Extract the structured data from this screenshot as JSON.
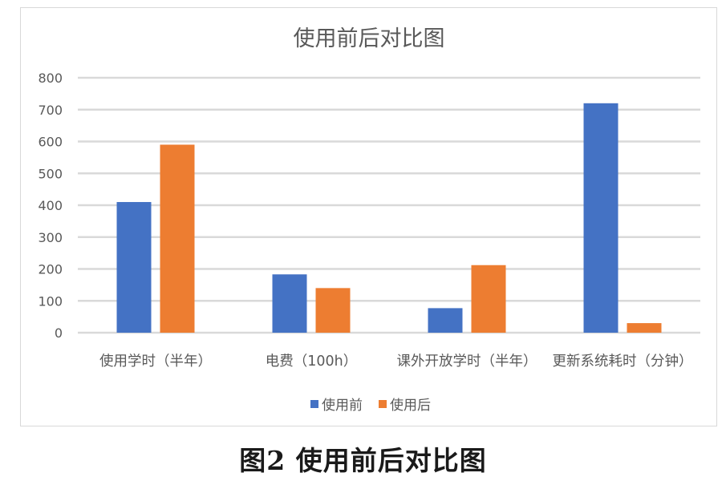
{
  "caption": "图2   使用前后对比图",
  "chart_data": {
    "type": "bar",
    "title": "使用前后对比图",
    "categories": [
      "使用学时（半年）",
      "电费（100h）",
      "课外开放学时（半年）",
      "更新系统耗时（分钟）"
    ],
    "series": [
      {
        "name": "使用前",
        "color": "#4472c4",
        "values": [
          410,
          183,
          77,
          720
        ]
      },
      {
        "name": "使用后",
        "color": "#ed7d31",
        "values": [
          590,
          140,
          212,
          30
        ]
      }
    ],
    "ylim": [
      0,
      800
    ],
    "yticks": [
      0,
      100,
      200,
      300,
      400,
      500,
      600,
      700,
      800
    ],
    "grid": true,
    "legend": "bottom",
    "xlabel": "",
    "ylabel": ""
  }
}
